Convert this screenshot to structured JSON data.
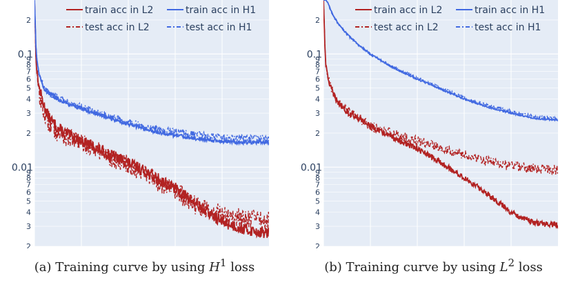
{
  "colors": {
    "l2": "#b22222",
    "h1": "#4169e1",
    "plot_bg": "#e5ecf6",
    "grid": "#ffffff"
  },
  "legend": {
    "train_l2": "train acc in L2",
    "train_h1": "train acc in H1",
    "test_l2": "test acc in L2",
    "test_h1": "test acc in H1"
  },
  "captions": [
    {
      "prefix": "(a)",
      "text": "Training curve by using",
      "math": "H",
      "sup": "1",
      "suffix": "loss"
    },
    {
      "prefix": "(b)",
      "text": "Training curve by using",
      "math": "L",
      "sup": "2",
      "suffix": "loss"
    }
  ],
  "chart_data": [
    {
      "type": "line",
      "yscale": "log",
      "xlim": [
        0,
        500
      ],
      "ylim": [
        0.002,
        0.3
      ],
      "xticks": [
        0,
        100,
        200,
        300,
        400
      ],
      "grid": true,
      "legend_position": "top-right",
      "series": [
        {
          "name": "train acc in L2",
          "color": "#b22222",
          "dash": "solid",
          "x": [
            0,
            3,
            5,
            10,
            20,
            30,
            50,
            75,
            100,
            150,
            200,
            250,
            300,
            350,
            400,
            450,
            500
          ],
          "y": [
            0.3,
            0.1,
            0.07,
            0.05,
            0.035,
            0.028,
            0.022,
            0.019,
            0.017,
            0.0135,
            0.011,
            0.0085,
            0.0065,
            0.0045,
            0.0033,
            0.0028,
            0.0026
          ],
          "noise": 0.12
        },
        {
          "name": "test acc in L2",
          "color": "#b22222",
          "dash": "dashdot",
          "x": [
            0,
            3,
            5,
            10,
            20,
            30,
            50,
            75,
            100,
            150,
            200,
            250,
            300,
            350,
            400,
            450,
            500
          ],
          "y": [
            0.3,
            0.09,
            0.065,
            0.045,
            0.03,
            0.025,
            0.02,
            0.018,
            0.0165,
            0.013,
            0.0105,
            0.008,
            0.006,
            0.0045,
            0.0038,
            0.0035,
            0.0034
          ],
          "noise": 0.2
        },
        {
          "name": "train acc in H1",
          "color": "#4169e1",
          "dash": "solid",
          "x": [
            0,
            3,
            5,
            10,
            20,
            30,
            50,
            75,
            100,
            150,
            200,
            250,
            300,
            350,
            400,
            450,
            500
          ],
          "y": [
            0.3,
            0.12,
            0.09,
            0.065,
            0.05,
            0.045,
            0.04,
            0.036,
            0.033,
            0.028,
            0.024,
            0.021,
            0.019,
            0.0178,
            0.017,
            0.0166,
            0.0165
          ],
          "noise": 0.04
        },
        {
          "name": "test acc in H1",
          "color": "#4169e1",
          "dash": "dashdot",
          "x": [
            0,
            3,
            5,
            10,
            20,
            30,
            50,
            75,
            100,
            150,
            200,
            250,
            300,
            350,
            400,
            450,
            500
          ],
          "y": [
            0.3,
            0.12,
            0.09,
            0.066,
            0.051,
            0.046,
            0.041,
            0.037,
            0.034,
            0.029,
            0.025,
            0.022,
            0.0205,
            0.0192,
            0.0184,
            0.018,
            0.0179
          ],
          "noise": 0.07
        }
      ]
    },
    {
      "type": "line",
      "yscale": "log",
      "xlim": [
        0,
        500
      ],
      "ylim": [
        0.002,
        0.3
      ],
      "xticks": [
        0,
        100,
        200,
        300,
        400
      ],
      "grid": true,
      "legend_position": "top-right",
      "series": [
        {
          "name": "train acc in L2",
          "color": "#b22222",
          "dash": "solid",
          "x": [
            0,
            3,
            5,
            10,
            20,
            30,
            50,
            75,
            100,
            150,
            200,
            250,
            300,
            350,
            400,
            450,
            500
          ],
          "y": [
            0.3,
            0.12,
            0.08,
            0.06,
            0.045,
            0.038,
            0.031,
            0.027,
            0.023,
            0.018,
            0.0145,
            0.011,
            0.008,
            0.0058,
            0.004,
            0.0032,
            0.0031
          ],
          "noise": 0.06
        },
        {
          "name": "test acc in L2",
          "color": "#b22222",
          "dash": "dashdot",
          "x": [
            0,
            3,
            5,
            10,
            20,
            30,
            50,
            75,
            100,
            150,
            200,
            250,
            300,
            350,
            400,
            450,
            500
          ],
          "y": [
            0.3,
            0.12,
            0.08,
            0.06,
            0.045,
            0.038,
            0.031,
            0.027,
            0.023,
            0.0195,
            0.017,
            0.015,
            0.0128,
            0.0113,
            0.0103,
            0.0097,
            0.0095
          ],
          "noise": 0.1
        },
        {
          "name": "train acc in H1",
          "color": "#4169e1",
          "dash": "solid",
          "x": [
            0,
            5,
            10,
            20,
            30,
            50,
            75,
            100,
            150,
            200,
            250,
            300,
            350,
            400,
            450,
            500
          ],
          "y": [
            0.3,
            0.3,
            0.28,
            0.22,
            0.19,
            0.15,
            0.12,
            0.1,
            0.075,
            0.06,
            0.049,
            0.04,
            0.034,
            0.03,
            0.027,
            0.026
          ],
          "noise": 0.015
        },
        {
          "name": "test acc in H1",
          "color": "#4169e1",
          "dash": "dashdot",
          "x": [
            0,
            5,
            10,
            20,
            30,
            50,
            75,
            100,
            150,
            200,
            250,
            300,
            350,
            400,
            450,
            500
          ],
          "y": [
            0.3,
            0.3,
            0.28,
            0.22,
            0.19,
            0.15,
            0.12,
            0.1,
            0.076,
            0.061,
            0.05,
            0.041,
            0.035,
            0.031,
            0.028,
            0.027
          ],
          "noise": 0.03
        }
      ]
    }
  ]
}
